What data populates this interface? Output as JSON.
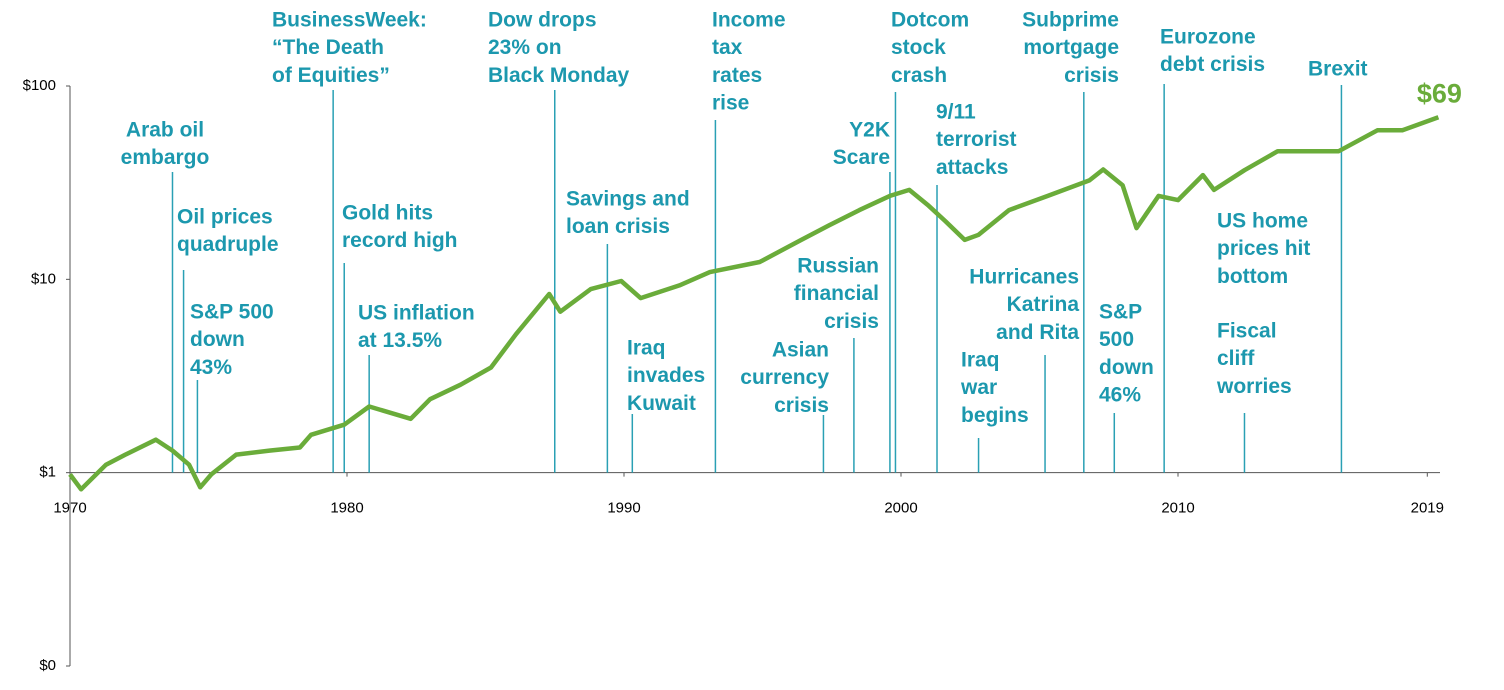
{
  "chart_data": {
    "type": "line",
    "log_y": true,
    "x": [
      1970.0,
      1970.4,
      1971.3,
      1972.0,
      1973.1,
      1973.7,
      1974.3,
      1974.7,
      1975.1,
      1976.0,
      1977.2,
      1978.3,
      1978.7,
      1979.9,
      1980.8,
      1982.3,
      1983.0,
      1984.1,
      1985.2,
      1986.1,
      1987.3,
      1987.7,
      1988.8,
      1989.9,
      1990.6,
      1992.0,
      1993.1,
      1994.9,
      1996.4,
      1997.4,
      1998.5,
      1999.6,
      2000.3,
      2001.0,
      2001.6,
      2002.3,
      2002.8,
      2003.9,
      2005.3,
      2006.8,
      2007.3,
      2008.0,
      2008.5,
      2009.3,
      2010.0,
      2010.9,
      2011.3,
      2012.4,
      2013.6,
      2015.1,
      2015.8,
      2017.2,
      2018.1,
      2019.4
    ],
    "series": [
      {
        "color": "#6aac3a",
        "values": [
          0.98,
          0.82,
          1.1,
          1.24,
          1.48,
          1.3,
          1.1,
          0.84,
          0.98,
          1.24,
          1.3,
          1.35,
          1.57,
          1.77,
          2.2,
          1.9,
          2.4,
          2.85,
          3.5,
          5.2,
          8.4,
          6.8,
          8.9,
          9.8,
          8.0,
          9.3,
          10.9,
          12.3,
          16,
          19,
          22.8,
          27,
          29,
          24,
          20,
          16,
          17,
          22.8,
          27,
          32.5,
          37,
          30.7,
          18.4,
          27,
          25.7,
          34.6,
          29,
          36.7,
          46,
          46,
          46,
          59,
          59,
          69
        ],
        "value_labels": [
          null,
          null,
          null,
          null,
          null,
          null,
          null,
          null,
          null,
          null,
          null,
          null,
          null,
          null,
          null,
          null,
          null,
          null,
          null,
          null,
          null,
          null,
          null,
          null,
          null,
          null,
          null,
          null,
          null,
          null,
          null,
          null,
          null,
          null,
          null,
          null,
          null,
          null,
          null,
          null,
          null,
          null,
          null,
          null,
          null,
          null,
          null,
          null,
          null,
          null,
          null,
          null,
          null,
          "$69"
        ]
      }
    ],
    "xlim": [
      1970,
      2020
    ],
    "xticks": [
      1970,
      1980,
      1990,
      2000,
      2010,
      2019
    ],
    "ylim": [
      0.1,
      100
    ],
    "yticks": [
      {
        "value": 0.1,
        "label": "$0"
      },
      {
        "value": 1,
        "label": "$1"
      },
      {
        "value": 10,
        "label": "$10"
      },
      {
        "value": 100,
        "label": "$100"
      }
    ],
    "annotations": [
      {
        "text": [
          "Arab oil",
          "embargo"
        ],
        "x": 1973.7
      },
      {
        "text": [
          "Oil prices",
          "quadruple"
        ],
        "x": 1974.1
      },
      {
        "text": [
          "S&P 500",
          "down",
          "43%"
        ],
        "x": 1974.6
      },
      {
        "text": [
          "BusinessWeek:",
          "“The Death",
          "of Equities”"
        ],
        "x": 1979.5
      },
      {
        "text": [
          "Gold hits",
          "record high"
        ],
        "x": 1979.9
      },
      {
        "text": [
          "US inflation",
          "at 13.5%"
        ],
        "x": 1980.8
      },
      {
        "text": [
          "Dow drops",
          "23% on",
          "Black Monday"
        ],
        "x": 1987.5
      },
      {
        "text": [
          "Savings and",
          "loan crisis"
        ],
        "x": 1989.4
      },
      {
        "text": [
          "Iraq",
          "invades",
          "Kuwait"
        ],
        "x": 1990.3
      },
      {
        "text": [
          "Income",
          "tax",
          "rates",
          "rise"
        ],
        "x": 1993.3
      },
      {
        "text": [
          "Asian",
          "currency",
          "crisis"
        ],
        "x": 1997.2
      },
      {
        "text": [
          "Russian",
          "financial",
          "crisis"
        ],
        "x": 1998.3
      },
      {
        "text": [
          "Y2K",
          "Scare"
        ],
        "x": 1999.6
      },
      {
        "text": [
          "Dotcom",
          "stock",
          "crash"
        ],
        "x": 1999.8
      },
      {
        "text": [
          "9/11",
          "terrorist",
          "attacks"
        ],
        "x": 2001.3
      },
      {
        "text": [
          "Iraq",
          "war",
          "begins"
        ],
        "x": 2002.8
      },
      {
        "text": [
          "Hurricanes",
          "Katrina",
          "and Rita"
        ],
        "x": 2005.2
      },
      {
        "text": [
          "Subprime",
          "mortgage",
          "crisis"
        ],
        "x": 2006.6
      },
      {
        "text": [
          "S&P",
          "500",
          "down",
          "46%"
        ],
        "x": 2007.7
      },
      {
        "text": [
          "Eurozone",
          "debt crisis"
        ],
        "x": 2009.5
      },
      {
        "text": [
          "US home",
          "prices hit",
          "bottom"
        ]
      },
      {
        "text": [
          "Fiscal",
          "cliff",
          "worries"
        ],
        "x": 2012.4
      },
      {
        "text": [
          "Brexit"
        ],
        "x": 2015.9
      }
    ]
  }
}
